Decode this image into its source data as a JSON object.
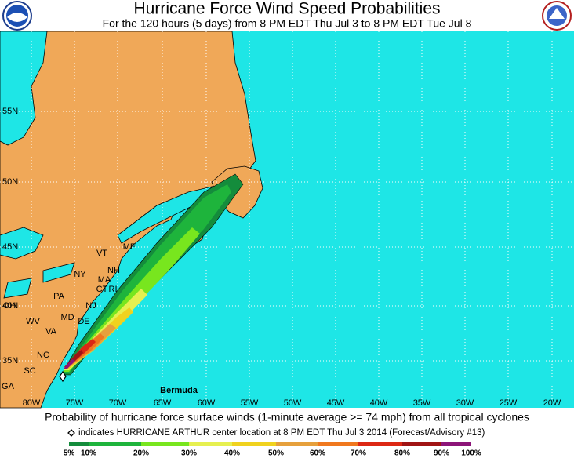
{
  "header": {
    "title": "Hurricane Force Wind Speed Probabilities",
    "subtitle": "For the 120 hours (5 days) from 8 PM EDT Thu Jul 3 to 8 PM EDT Tue Jul 8"
  },
  "map": {
    "lat_labels": [
      "55N",
      "50N",
      "45N",
      "40N",
      "35N"
    ],
    "lon_labels": [
      "80W",
      "75W",
      "70W",
      "65W",
      "60W",
      "55W",
      "50W",
      "45W",
      "40W",
      "35W",
      "30W",
      "25W",
      "20W"
    ],
    "place_labels": [
      "VT",
      "ME",
      "NH",
      "NY",
      "MA",
      "CT",
      "RI",
      "PA",
      "NJ",
      "DE",
      "MD",
      "WV",
      "VA",
      "NC",
      "SC",
      "GA",
      "OH",
      "Bermuda"
    ]
  },
  "footer": {
    "caption": "Probability of hurricane force surface winds (1-minute average >= 74 mph) from all tropical cyclones",
    "note": "indicates HURRICANE ARTHUR center location at 8 PM EDT Thu Jul 3 2014 (Forecast/Advisory #13)"
  },
  "legend": {
    "labels": [
      "5%",
      "10%",
      "20%",
      "30%",
      "40%",
      "50%",
      "60%",
      "70%",
      "80%",
      "90%",
      "100%"
    ],
    "colors": [
      "#148c3c",
      "#1eb43c",
      "#78e61e",
      "#e6f050",
      "#f0d21e",
      "#e6a03c",
      "#f0781e",
      "#dc2814",
      "#a01414",
      "#8c1478"
    ]
  }
}
